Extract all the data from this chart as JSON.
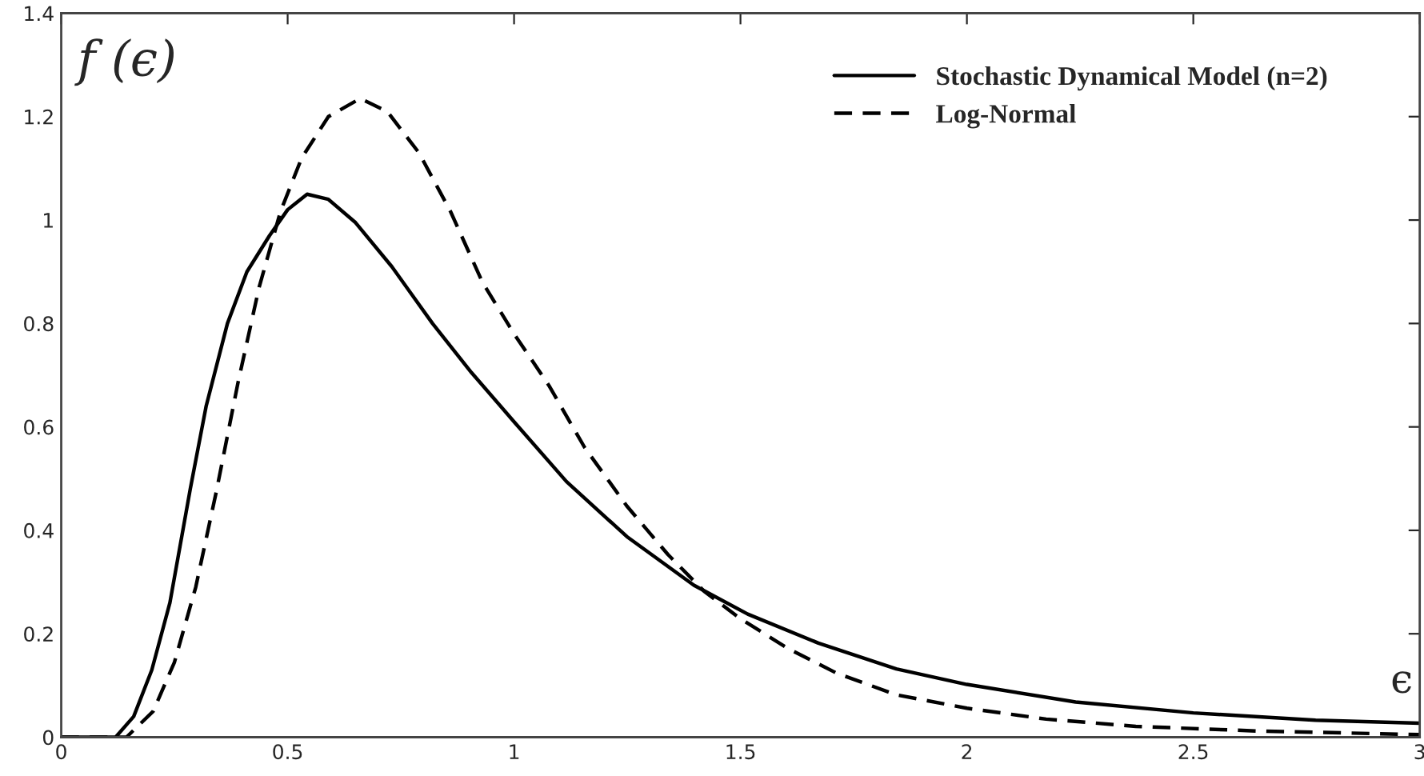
{
  "chart_data": {
    "type": "line",
    "ylabel": "f (ϵ)",
    "xlabel": "ϵ",
    "xlim": [
      0,
      3
    ],
    "ylim": [
      0,
      1.4
    ],
    "xticks": [
      0,
      0.5,
      1,
      1.5,
      2,
      2.5,
      3
    ],
    "yticks": [
      0,
      0.2,
      0.4,
      0.6,
      0.8,
      1,
      1.2,
      1.4
    ],
    "grid": false,
    "legend": "top right",
    "marker": "none",
    "series": [
      {
        "name": "Stochastic Dynamical Model (n=2)",
        "color": "#000000",
        "line_style": "solid",
        "x": [
          0,
          0.12,
          0.16,
          0.2,
          0.24,
          0.285,
          0.32,
          0.367,
          0.41,
          0.46,
          0.5,
          0.543,
          0.59,
          0.65,
          0.73,
          0.82,
          0.906,
          1.0,
          1.116,
          1.249,
          1.397,
          1.516,
          1.672,
          1.844,
          2.0,
          2.24,
          2.5,
          2.77,
          3.0
        ],
        "values": [
          0,
          0,
          0.04,
          0.13,
          0.26,
          0.48,
          0.64,
          0.8,
          0.9,
          0.97,
          1.02,
          1.05,
          1.04,
          0.995,
          0.91,
          0.8,
          0.705,
          0.61,
          0.494,
          0.388,
          0.294,
          0.238,
          0.182,
          0.132,
          0.102,
          0.068,
          0.047,
          0.033,
          0.027
        ]
      },
      {
        "name": "Log-Normal",
        "color": "#000000",
        "line_style": "dashed",
        "x": [
          0,
          0.144,
          0.203,
          0.25,
          0.297,
          0.343,
          0.39,
          0.437,
          0.484,
          0.531,
          0.59,
          0.66,
          0.72,
          0.79,
          0.86,
          0.93,
          1.0,
          1.077,
          1.156,
          1.249,
          1.34,
          1.42,
          1.5,
          1.606,
          1.712,
          1.844,
          2.0,
          2.175,
          2.373,
          2.64,
          3.0
        ],
        "values": [
          0,
          0,
          0.05,
          0.145,
          0.29,
          0.477,
          0.684,
          0.87,
          1.016,
          1.12,
          1.2,
          1.235,
          1.21,
          1.13,
          1.016,
          0.88,
          0.78,
          0.68,
          0.56,
          0.447,
          0.353,
          0.282,
          0.229,
          0.171,
          0.124,
          0.082,
          0.056,
          0.035,
          0.021,
          0.012,
          0.005
        ]
      }
    ]
  }
}
